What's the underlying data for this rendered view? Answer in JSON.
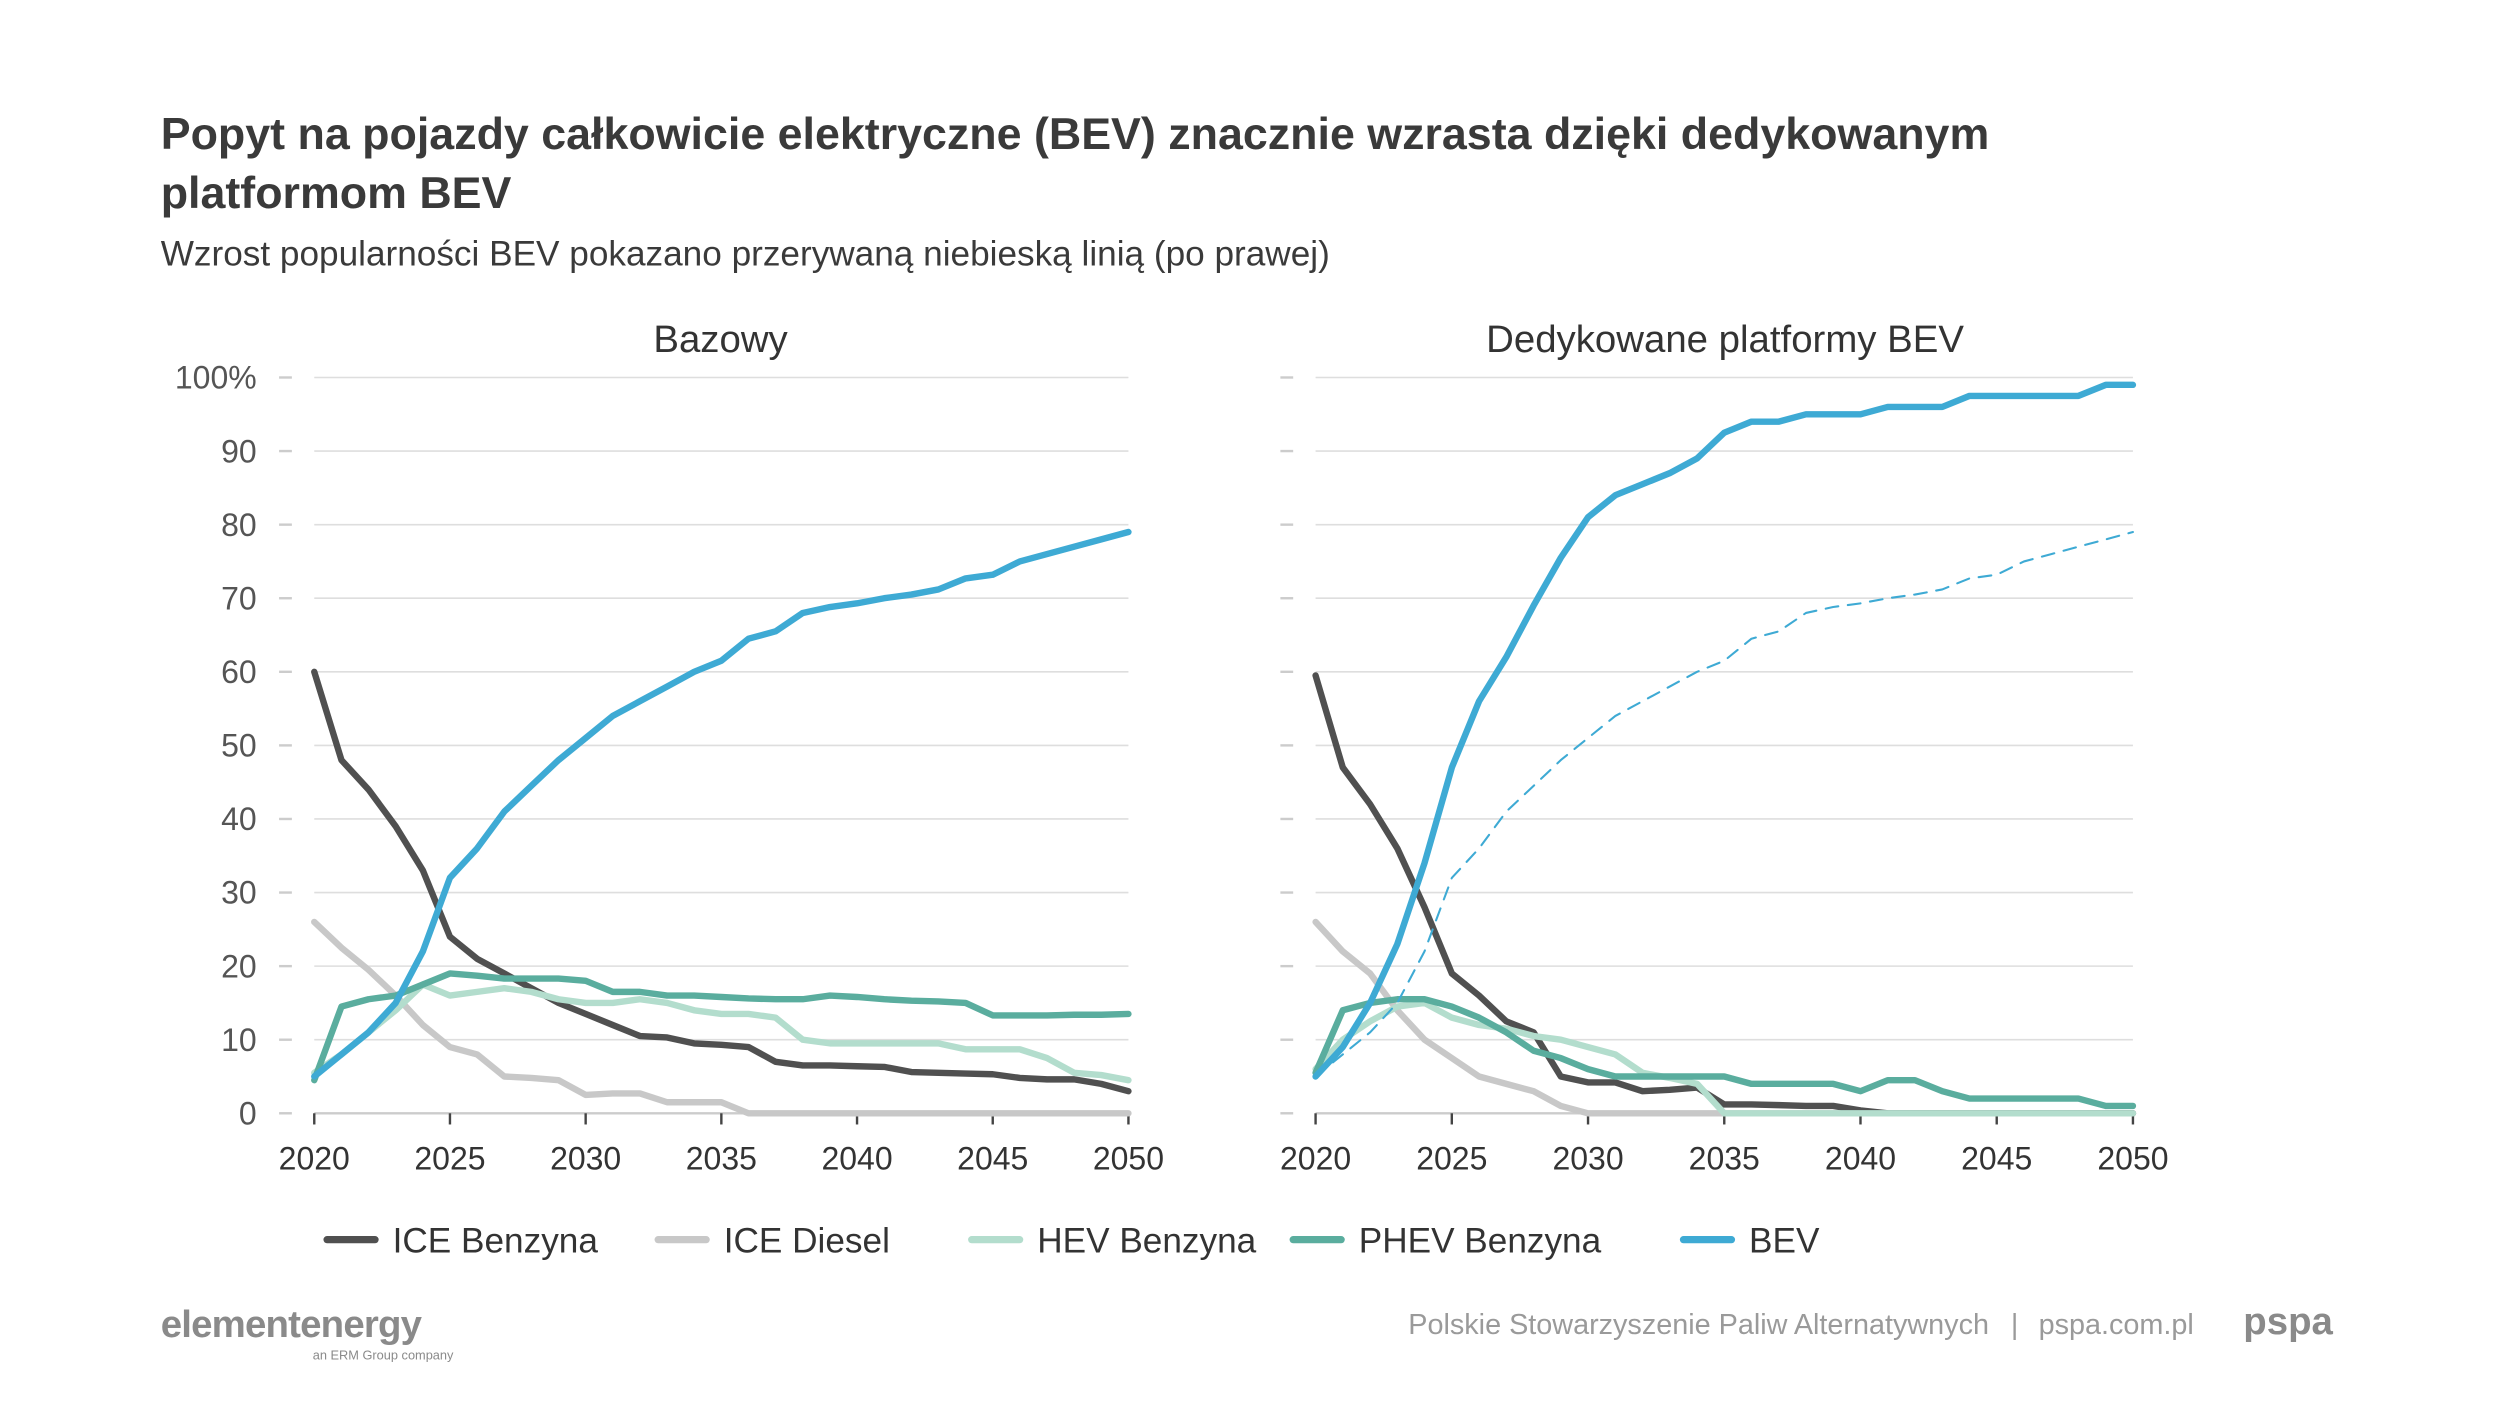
{
  "header": {
    "title_line1": "Popyt na pojazdy całkowicie elektryczne (BEV) znacznie wzrasta dzięki dedykowanym",
    "title_line2": "platformom BEV",
    "subtitle": "Wzrost popularności BEV pokazano przerywaną niebieską linią (po prawej)"
  },
  "footer": {
    "logo_left": "elementenergy",
    "logo_left_sub": "an ERM Group company",
    "org": "Polskie Stowarzyszenie Paliw Alternatywnych",
    "separator": "|",
    "url": "pspa.com.pl",
    "logo_right": "pspa"
  },
  "chart_data": [
    {
      "type": "line",
      "title": "Bazowy",
      "xlabel": "",
      "ylabel": "",
      "xlim": [
        2020,
        2050
      ],
      "ylim": [
        0,
        100
      ],
      "xticks": [
        "2020",
        "2025",
        "2030",
        "2035",
        "2040",
        "2045",
        "2050"
      ],
      "yticks": [
        "0",
        "10",
        "20",
        "30",
        "40",
        "50",
        "60",
        "70",
        "80",
        "90",
        "100%"
      ],
      "grid": true,
      "x_start": 2020,
      "series": [
        {
          "name": "ICE Benzyna",
          "color": "#505050",
          "values": [
            60,
            48,
            44,
            39,
            33,
            24,
            21,
            19,
            17,
            15,
            13.5,
            12,
            10.5,
            10.3,
            9.5,
            9.3,
            9,
            7,
            6.5,
            6.5,
            6.4,
            6.3,
            5.6,
            5.5,
            5.4,
            5.3,
            4.8,
            4.6,
            4.6,
            4,
            3
          ]
        },
        {
          "name": "ICE Diesel",
          "color": "#c8c8c8",
          "values": [
            26,
            22.5,
            19.5,
            16,
            12,
            9,
            8,
            5,
            4.8,
            4.5,
            2.5,
            2.7,
            2.7,
            1.5,
            1.5,
            1.5,
            0,
            0,
            0,
            0,
            0,
            0,
            0,
            0,
            0,
            0,
            0,
            0,
            0,
            0,
            0
          ]
        },
        {
          "name": "HEV Benzyna",
          "color": "#b3ddcd",
          "values": [
            5.5,
            8,
            11,
            14,
            17.5,
            16,
            16.5,
            17,
            16.5,
            15.5,
            15,
            15,
            15.5,
            15,
            14,
            13.5,
            13.5,
            13,
            10,
            9.5,
            9.5,
            9.5,
            9.5,
            9.5,
            8.7,
            8.7,
            8.7,
            7.5,
            5.5,
            5.2,
            4.5
          ]
        },
        {
          "name": "PHEV Benzyna",
          "color": "#5aad9e",
          "values": [
            4.5,
            14.5,
            15.5,
            16,
            17.5,
            19,
            18.7,
            18.3,
            18.3,
            18.3,
            18,
            16.5,
            16.5,
            16,
            16,
            15.8,
            15.6,
            15.5,
            15.5,
            16,
            15.8,
            15.5,
            15.3,
            15.2,
            15,
            13.3,
            13.3,
            13.3,
            13.4,
            13.4,
            13.5
          ]
        },
        {
          "name": "BEV",
          "color": "#3eaad4",
          "values": [
            5,
            8,
            11,
            15,
            22,
            32,
            36,
            41,
            44.5,
            48,
            51,
            54,
            56,
            58,
            60,
            61.5,
            64.5,
            65.5,
            68,
            68.8,
            69.3,
            70,
            70.5,
            71.2,
            72.7,
            73.2,
            75,
            76,
            77,
            78,
            79
          ]
        }
      ]
    },
    {
      "type": "line",
      "title": "Dedykowane platformy BEV",
      "xlabel": "",
      "ylabel": "",
      "xlim": [
        2020,
        2050
      ],
      "ylim": [
        0,
        100
      ],
      "xticks": [
        "2020",
        "2025",
        "2030",
        "2035",
        "2040",
        "2045",
        "2050"
      ],
      "grid": true,
      "x_start": 2020,
      "series": [
        {
          "name": "ICE Benzyna",
          "color": "#505050",
          "values": [
            59.5,
            47,
            42,
            36,
            28,
            19,
            16,
            12.5,
            11,
            5,
            4.2,
            4.2,
            3,
            3.2,
            3.5,
            1.2,
            1.2,
            1.1,
            1,
            1,
            0.4,
            0,
            0,
            0,
            0,
            0,
            0,
            0,
            0,
            0,
            0
          ]
        },
        {
          "name": "ICE Diesel",
          "color": "#c8c8c8",
          "values": [
            26,
            22,
            19,
            14,
            10,
            7.5,
            5,
            4,
            3,
            1,
            0,
            0,
            0,
            0,
            0,
            0,
            0,
            0,
            0,
            0,
            0,
            0,
            0,
            0,
            0,
            0,
            0,
            0,
            0,
            0,
            0
          ]
        },
        {
          "name": "HEV Benzyna",
          "color": "#b3ddcd",
          "values": [
            6,
            10,
            12.5,
            14.5,
            15,
            13,
            12,
            11.5,
            10.5,
            10,
            9,
            8,
            5.5,
            4.8,
            4,
            0,
            0,
            0,
            0,
            0,
            0,
            0,
            0,
            0,
            0,
            0,
            0,
            0,
            0,
            0,
            0
          ]
        },
        {
          "name": "PHEV Benzyna",
          "color": "#5aad9e",
          "values": [
            5.5,
            14,
            15,
            15.5,
            15.5,
            14.5,
            13,
            11,
            8.5,
            7.5,
            6,
            5,
            5,
            5,
            5,
            5,
            4,
            4,
            4,
            4,
            3,
            4.5,
            4.5,
            3,
            2,
            2,
            2,
            2,
            2,
            1,
            1
          ]
        },
        {
          "name": "BEV",
          "color": "#3eaad4",
          "values": [
            5,
            9,
            15,
            23,
            34,
            47,
            56,
            62,
            69,
            75.5,
            81,
            84,
            85.5,
            87,
            89,
            92.5,
            94,
            94,
            95,
            95,
            95,
            96,
            96,
            96,
            97.5,
            97.5,
            97.5,
            97.5,
            97.5,
            99,
            99
          ]
        },
        {
          "name": "BEV (Bazowy)",
          "color": "#3eaad4",
          "dashed": true,
          "values": [
            5,
            8,
            11,
            15,
            22,
            32,
            36,
            41,
            44.5,
            48,
            51,
            54,
            56,
            58,
            60,
            61.5,
            64.5,
            65.5,
            68,
            68.8,
            69.3,
            70,
            70.5,
            71.2,
            72.7,
            73.2,
            75,
            76,
            77,
            78,
            79
          ]
        }
      ]
    }
  ],
  "legend": [
    {
      "label": "ICE Benzyna",
      "color": "#505050"
    },
    {
      "label": "ICE Diesel",
      "color": "#c8c8c8"
    },
    {
      "label": "HEV Benzyna",
      "color": "#b3ddcd"
    },
    {
      "label": "PHEV Benzyna",
      "color": "#5aad9e"
    },
    {
      "label": "BEV",
      "color": "#3eaad4"
    }
  ]
}
